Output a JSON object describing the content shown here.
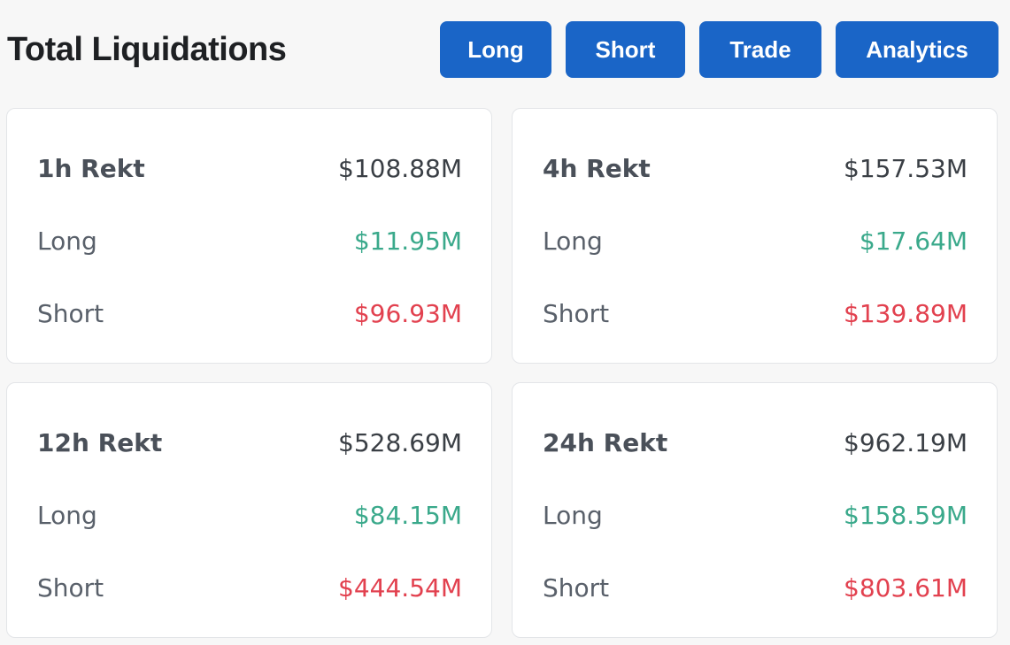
{
  "header": {
    "title": "Total Liquidations",
    "buttons": {
      "long": "Long",
      "short": "Short",
      "trade": "Trade",
      "analytics": "Analytics"
    }
  },
  "colors": {
    "accent": "#1a65c7",
    "long": "#3aa98b",
    "short": "#e2414f"
  },
  "cards": [
    {
      "label": "1h Rekt",
      "total": "$108.88M",
      "long_label": "Long",
      "long_value": "$11.95M",
      "short_label": "Short",
      "short_value": "$96.93M"
    },
    {
      "label": "4h Rekt",
      "total": "$157.53M",
      "long_label": "Long",
      "long_value": "$17.64M",
      "short_label": "Short",
      "short_value": "$139.89M"
    },
    {
      "label": "12h Rekt",
      "total": "$528.69M",
      "long_label": "Long",
      "long_value": "$84.15M",
      "short_label": "Short",
      "short_value": "$444.54M"
    },
    {
      "label": "24h Rekt",
      "total": "$962.19M",
      "long_label": "Long",
      "long_value": "$158.59M",
      "short_label": "Short",
      "short_value": "$803.61M"
    }
  ]
}
